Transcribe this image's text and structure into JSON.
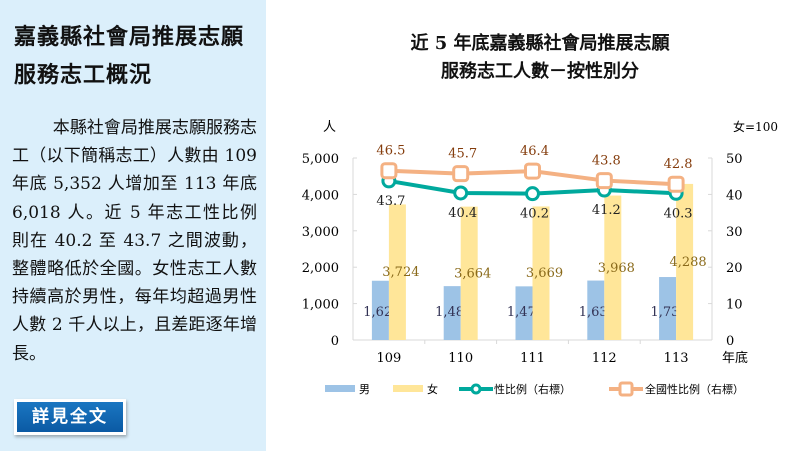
{
  "sidebar": {
    "title": "嘉義縣社會局推展志願服務志工概況",
    "body": "本縣社會局推展志願服務志工（以下簡稱志工）人數由 109 年底 5,352 人增加至 113 年底 6,018 人。近 5 年志工性比例則在 40.2 至 43.7 之間波動，整體略低於全國。女性志工人數持續高於男性，每年均超過男性人數 2 千人以上，且差距逐年增長。",
    "button": "詳見全文"
  },
  "chart_data": {
    "type": "bar",
    "title_line1": "近 5 年底嘉義縣社會局推展志願",
    "title_line2": "服務志工人數－按性別分",
    "ylabel_left": "人",
    "ylabel_right": "女=100",
    "xlabel": "年底",
    "categories": [
      "109",
      "110",
      "111",
      "112",
      "113"
    ],
    "ylim_left": [
      0,
      5000
    ],
    "yticks_left": [
      "0",
      "1,000",
      "2,000",
      "3,000",
      "4,000",
      "5,000"
    ],
    "ylim_right": [
      0,
      50
    ],
    "yticks_right": [
      "0",
      "10",
      "20",
      "30",
      "40",
      "50"
    ],
    "series": [
      {
        "name": "男",
        "kind": "bar",
        "axis": "left",
        "color": "#9dc3e6",
        "values": [
          1628,
          1480,
          1474,
          1633,
          1730
        ],
        "labels": [
          "1,628",
          "1,480",
          "1,474",
          "1,633",
          "1,730"
        ]
      },
      {
        "name": "女",
        "kind": "bar",
        "axis": "left",
        "color": "#ffe699",
        "values": [
          3724,
          3664,
          3669,
          3968,
          4288
        ],
        "labels": [
          "3,724",
          "3,664",
          "3,669",
          "3,968",
          "4,288"
        ]
      },
      {
        "name": "性比例（右標）",
        "kind": "line",
        "axis": "right",
        "color": "#00a99d",
        "values": [
          43.7,
          40.4,
          40.2,
          41.2,
          40.3
        ]
      },
      {
        "name": "全國性比例（右標）",
        "kind": "line",
        "axis": "right",
        "color": "#f4b183",
        "values": [
          46.5,
          45.7,
          46.4,
          43.8,
          42.8
        ]
      }
    ],
    "legend": "bottom",
    "grid": false
  }
}
